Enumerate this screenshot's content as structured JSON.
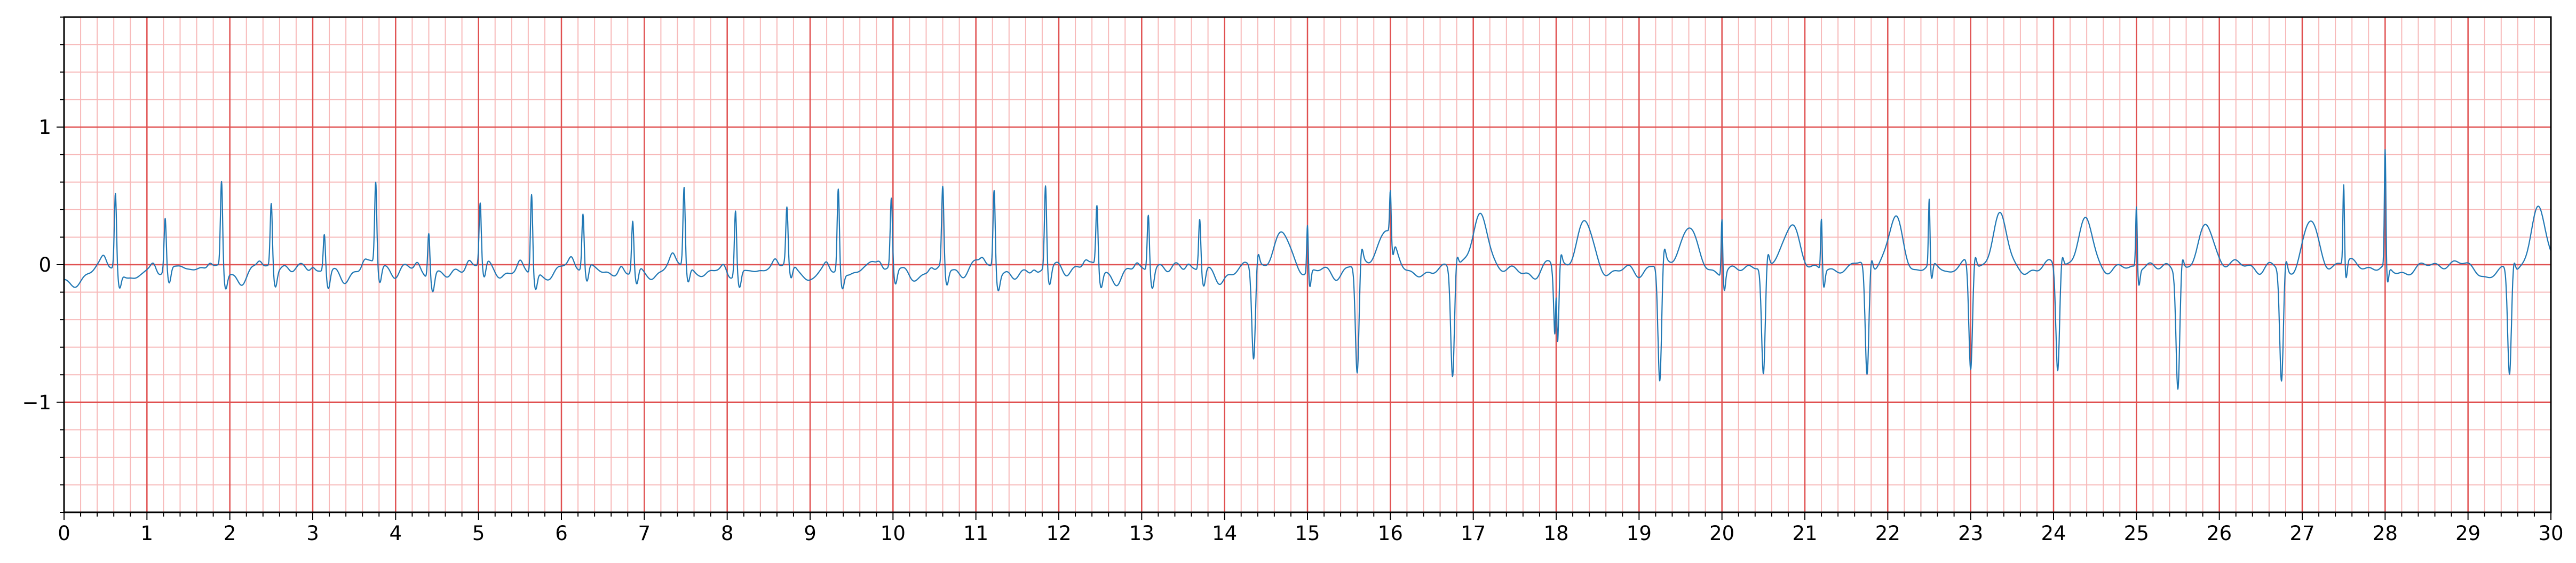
{
  "chart_data": {
    "type": "line",
    "title": "",
    "xlabel": "",
    "ylabel": "",
    "xlim": [
      0,
      30
    ],
    "ylim": [
      -1.8,
      1.8
    ],
    "x_ticks": [
      0,
      1,
      2,
      3,
      4,
      5,
      6,
      7,
      8,
      9,
      10,
      11,
      12,
      13,
      14,
      15,
      16,
      17,
      18,
      19,
      20,
      21,
      22,
      23,
      24,
      25,
      26,
      27,
      28,
      29,
      30
    ],
    "x_tick_labels": [
      "0",
      "1",
      "2",
      "3",
      "4",
      "5",
      "6",
      "7",
      "8",
      "9",
      "10",
      "11",
      "12",
      "13",
      "14",
      "15",
      "16",
      "17",
      "18",
      "19",
      "20",
      "21",
      "22",
      "23",
      "24",
      "25",
      "26",
      "27",
      "28",
      "29",
      "30"
    ],
    "y_ticks": [
      -1,
      0,
      1
    ],
    "y_tick_labels": [
      "−1",
      "0",
      "1"
    ],
    "grid": {
      "major_step_x": 1,
      "minor_step_x": 0.2,
      "major_step_y": 1,
      "minor_step_y": 0.2,
      "major_color": "#e05050",
      "minor_color": "#f7b9b9"
    },
    "series": [
      {
        "name": "ECG",
        "color": "#1f77b4",
        "segment_1": {
          "x_range": [
            0,
            14.2
          ],
          "beat_times": [
            0.62,
            1.22,
            1.9,
            2.5,
            3.14,
            3.76,
            4.4,
            5.02,
            5.64,
            6.26,
            6.86,
            7.48,
            8.1,
            8.72,
            9.34,
            9.98,
            10.6,
            11.22,
            11.84,
            12.46,
            13.08,
            13.7
          ],
          "beat_peaks": [
            0.55,
            0.38,
            0.63,
            0.47,
            0.28,
            0.6,
            0.33,
            0.45,
            0.58,
            0.4,
            0.37,
            0.57,
            0.47,
            0.4,
            0.6,
            0.5,
            0.58,
            0.58,
            0.61,
            0.45,
            0.42,
            0.38
          ]
        },
        "segment_2": {
          "x_range": [
            14.2,
            30
          ],
          "beat_times": [
            14.35,
            15.6,
            16.75,
            18.0,
            19.25,
            20.5,
            21.75,
            23.0,
            24.05,
            25.5,
            26.75,
            29.5
          ],
          "t_peak_offset": 0.35,
          "t_wave_amplitudes": [
            0.22,
            0.28,
            0.36,
            0.32,
            0.32,
            0.35,
            0.37,
            0.4,
            0.35,
            0.35,
            0.35,
            0.38
          ],
          "deep_troughs": [
            -0.68,
            -0.82,
            -0.78,
            -0.82,
            -0.88,
            -0.8,
            -0.8,
            -0.78,
            -0.75,
            -0.85,
            -0.82,
            -0.75
          ],
          "spikes": [
            {
              "x": 15.0,
              "y": 0.35
            },
            {
              "x": 16.0,
              "y": 0.32
            },
            {
              "x": 18.0,
              "y": 0.58
            },
            {
              "x": 20.0,
              "y": 0.42
            },
            {
              "x": 21.2,
              "y": 0.38
            },
            {
              "x": 22.5,
              "y": 0.48
            },
            {
              "x": 25.0,
              "y": 0.45
            },
            {
              "x": 27.5,
              "y": 0.58
            },
            {
              "x": 28.0,
              "y": 0.85
            }
          ]
        }
      }
    ]
  }
}
